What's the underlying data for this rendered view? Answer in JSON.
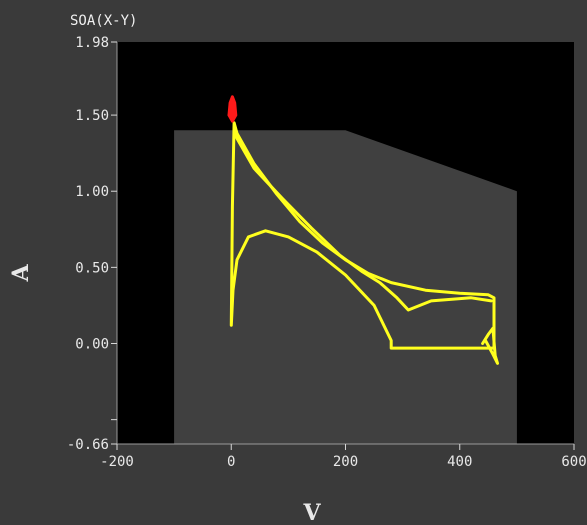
{
  "chart_data": {
    "type": "line",
    "title": "SOA(X-Y)",
    "xlabel": "V",
    "ylabel": "A",
    "xlim": [
      -200,
      600
    ],
    "ylim": [
      -0.66,
      1.98
    ],
    "x_ticks": [
      -200,
      0,
      200,
      400,
      600
    ],
    "x_tick_labels": [
      "-200",
      "0",
      "200",
      "400",
      "600"
    ],
    "y_ticks": [
      1.98,
      1.5,
      1.0,
      0.5,
      0.0,
      -0.66
    ],
    "y_tick_labels": [
      "1.98",
      "1.50",
      "1.00",
      "0.50",
      "0.00",
      "-0.66"
    ],
    "colors": {
      "background": "#3a3a3a",
      "plot_area": "#000000",
      "safe_area": "#404040",
      "trace": "#ffff1e",
      "peak": "#ff1a1a",
      "text": "#e8e8e8"
    },
    "safe_area": {
      "points": [
        [
          -100,
          -0.66
        ],
        [
          -100,
          1.4
        ],
        [
          200,
          1.4
        ],
        [
          500,
          1.0
        ],
        [
          500,
          -0.66
        ]
      ]
    },
    "series": [
      {
        "color": "#ffff1e",
        "points": [
          [
            0,
            0.12
          ],
          [
            2,
            0.9
          ],
          [
            5,
            1.45
          ],
          [
            10,
            1.38
          ],
          [
            40,
            1.18
          ],
          [
            80,
            0.98
          ],
          [
            120,
            0.8
          ],
          [
            160,
            0.66
          ],
          [
            200,
            0.55
          ],
          [
            240,
            0.46
          ],
          [
            280,
            0.4
          ],
          [
            340,
            0.35
          ],
          [
            400,
            0.33
          ],
          [
            450,
            0.32
          ],
          [
            460,
            0.3
          ],
          [
            460,
            -0.03
          ],
          [
            440,
            -0.03
          ],
          [
            280,
            -0.03
          ],
          [
            280,
            0.02
          ],
          [
            250,
            0.25
          ],
          [
            200,
            0.45
          ],
          [
            150,
            0.6
          ],
          [
            100,
            0.7
          ],
          [
            60,
            0.74
          ],
          [
            30,
            0.7
          ],
          [
            10,
            0.55
          ],
          [
            3,
            0.35
          ],
          [
            0,
            0.12
          ]
        ]
      },
      {
        "color": "#ffff1e",
        "points": [
          [
            5,
            1.38
          ],
          [
            40,
            1.15
          ],
          [
            90,
            0.95
          ],
          [
            140,
            0.76
          ],
          [
            190,
            0.58
          ],
          [
            230,
            0.47
          ],
          [
            260,
            0.4
          ],
          [
            290,
            0.3
          ],
          [
            310,
            0.22
          ],
          [
            350,
            0.28
          ],
          [
            420,
            0.3
          ],
          [
            455,
            0.28
          ]
        ]
      },
      {
        "color": "#ffff1e",
        "points": [
          [
            440,
            0.0
          ],
          [
            450,
            0.06
          ],
          [
            458,
            0.1
          ],
          [
            462,
            -0.08
          ],
          [
            466,
            -0.13
          ],
          [
            458,
            -0.07
          ],
          [
            445,
            0.02
          ]
        ]
      },
      {
        "color": "#ff1a1a",
        "points": [
          [
            -4,
            1.5
          ],
          [
            -2,
            1.58
          ],
          [
            2,
            1.62
          ],
          [
            6,
            1.58
          ],
          [
            8,
            1.5
          ],
          [
            2,
            1.46
          ],
          [
            -4,
            1.5
          ]
        ]
      }
    ]
  }
}
